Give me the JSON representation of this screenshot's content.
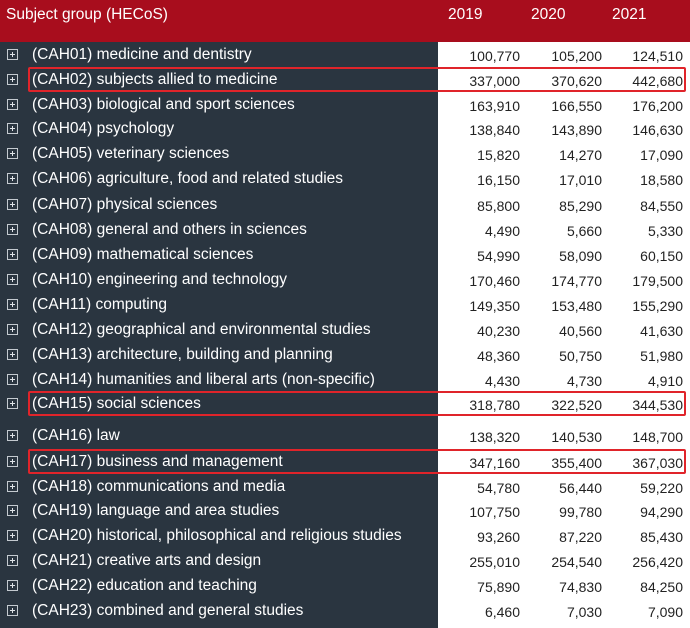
{
  "header": {
    "title": "Subject group (HECoS)",
    "years": [
      "2019",
      "2020",
      "2021"
    ]
  },
  "rows": [
    {
      "label": "(CAH01) medicine and dentistry",
      "values": [
        "100,770",
        "105,200",
        "124,510"
      ]
    },
    {
      "label": "(CAH02) subjects allied to medicine",
      "values": [
        "337,000",
        "370,620",
        "442,680"
      ],
      "highlighted": true
    },
    {
      "label": "(CAH03) biological and sport sciences",
      "values": [
        "163,910",
        "166,550",
        "176,200"
      ]
    },
    {
      "label": "(CAH04) psychology",
      "values": [
        "138,840",
        "143,890",
        "146,630"
      ]
    },
    {
      "label": "(CAH05) veterinary sciences",
      "values": [
        "15,820",
        "14,270",
        "17,090"
      ]
    },
    {
      "label": "(CAH06) agriculture, food and related studies",
      "values": [
        "16,150",
        "17,010",
        "18,580"
      ]
    },
    {
      "label": "(CAH07) physical sciences",
      "values": [
        "85,800",
        "85,290",
        "84,550"
      ]
    },
    {
      "label": "(CAH08) general and others in sciences",
      "values": [
        "4,490",
        "5,660",
        "5,330"
      ]
    },
    {
      "label": "(CAH09) mathematical sciences",
      "values": [
        "54,990",
        "58,090",
        "60,150"
      ]
    },
    {
      "label": "(CAH10) engineering and technology",
      "values": [
        "170,460",
        "174,770",
        "179,500"
      ]
    },
    {
      "label": "(CAH11) computing",
      "values": [
        "149,350",
        "153,480",
        "155,290"
      ]
    },
    {
      "label": "(CAH12) geographical and environmental studies",
      "values": [
        "40,230",
        "40,560",
        "41,630"
      ]
    },
    {
      "label": "(CAH13) architecture, building and planning",
      "values": [
        "48,360",
        "50,750",
        "51,980"
      ]
    },
    {
      "label": "(CAH14) humanities and liberal arts (non-specific)",
      "values": [
        "4,430",
        "4,730",
        "4,910"
      ]
    },
    {
      "label": "(CAH15) social sciences",
      "values": [
        "318,780",
        "322,520",
        "344,530"
      ],
      "highlighted": true
    },
    {
      "label": "(CAH16) law",
      "values": [
        "138,320",
        "140,530",
        "148,700"
      ]
    },
    {
      "label": "(CAH17) business and management",
      "values": [
        "347,160",
        "355,400",
        "367,030"
      ],
      "highlighted": true
    },
    {
      "label": "(CAH18) communications and media",
      "values": [
        "54,780",
        "56,440",
        "59,220"
      ]
    },
    {
      "label": "(CAH19) language and area studies",
      "values": [
        "107,750",
        "99,780",
        "94,290"
      ]
    },
    {
      "label": "(CAH20) historical, philosophical and religious studies",
      "values": [
        "93,260",
        "87,220",
        "85,430"
      ]
    },
    {
      "label": "(CAH21) creative arts and design",
      "values": [
        "255,010",
        "254,540",
        "256,420"
      ]
    },
    {
      "label": "(CAH22) education and teaching",
      "values": [
        "75,890",
        "74,830",
        "84,250"
      ]
    },
    {
      "label": "(CAH23) combined and general studies",
      "values": [
        "6,460",
        "7,030",
        "7,090"
      ]
    }
  ],
  "colors": {
    "header": "#a80d1d",
    "label_panel": "#2a3540",
    "highlight": "#e0242a"
  },
  "icons": {
    "expander": "plus-box-icon"
  }
}
